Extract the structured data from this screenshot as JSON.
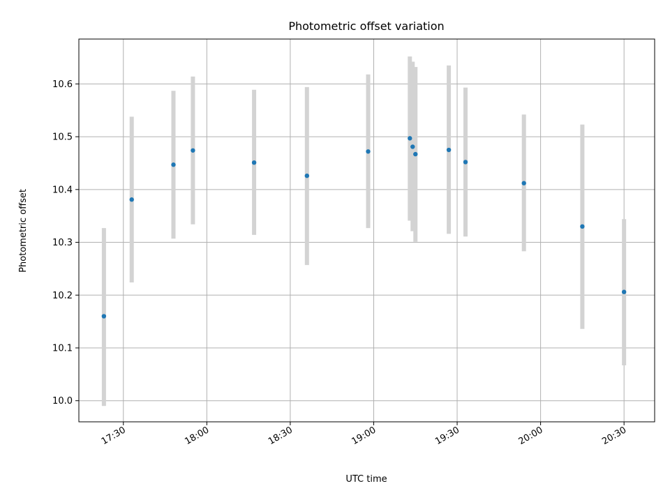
{
  "chart_data": {
    "type": "scatter",
    "title": "Photometric offset variation",
    "xlabel": "UTC time",
    "ylabel": "Photometric offset",
    "x_tick_labels": [
      "17:30",
      "18:00",
      "18:30",
      "19:00",
      "19:30",
      "20:00",
      "20:30"
    ],
    "y_tick_labels": [
      "10.0",
      "10.1",
      "10.2",
      "10.3",
      "10.4",
      "10.5",
      "10.6"
    ],
    "xlim": [
      "17:14",
      "20:41"
    ],
    "ylim": [
      9.96,
      10.685
    ],
    "grid": true,
    "marker_color": "#1f77b4",
    "errorbar_color": "#d3d3d3",
    "points": [
      {
        "time": "17:23",
        "y": 10.16,
        "ylow": 9.99,
        "yhigh": 10.327
      },
      {
        "time": "17:33",
        "y": 10.381,
        "ylow": 10.224,
        "yhigh": 10.538
      },
      {
        "time": "17:48",
        "y": 10.447,
        "ylow": 10.307,
        "yhigh": 10.587
      },
      {
        "time": "17:55",
        "y": 10.474,
        "ylow": 10.334,
        "yhigh": 10.614
      },
      {
        "time": "18:17",
        "y": 10.451,
        "ylow": 10.314,
        "yhigh": 10.589
      },
      {
        "time": "18:36",
        "y": 10.426,
        "ylow": 10.257,
        "yhigh": 10.594
      },
      {
        "time": "18:58",
        "y": 10.472,
        "ylow": 10.327,
        "yhigh": 10.618
      },
      {
        "time": "19:13",
        "y": 10.497,
        "ylow": 10.341,
        "yhigh": 10.652
      },
      {
        "time": "19:14",
        "y": 10.481,
        "ylow": 10.321,
        "yhigh": 10.642
      },
      {
        "time": "19:15",
        "y": 10.467,
        "ylow": 10.301,
        "yhigh": 10.632
      },
      {
        "time": "19:27",
        "y": 10.475,
        "ylow": 10.316,
        "yhigh": 10.635
      },
      {
        "time": "19:33",
        "y": 10.452,
        "ylow": 10.311,
        "yhigh": 10.593
      },
      {
        "time": "19:54",
        "y": 10.412,
        "ylow": 10.283,
        "yhigh": 10.542
      },
      {
        "time": "20:15",
        "y": 10.33,
        "ylow": 10.136,
        "yhigh": 10.523
      },
      {
        "time": "20:30",
        "y": 10.206,
        "ylow": 10.067,
        "yhigh": 10.344
      }
    ]
  }
}
